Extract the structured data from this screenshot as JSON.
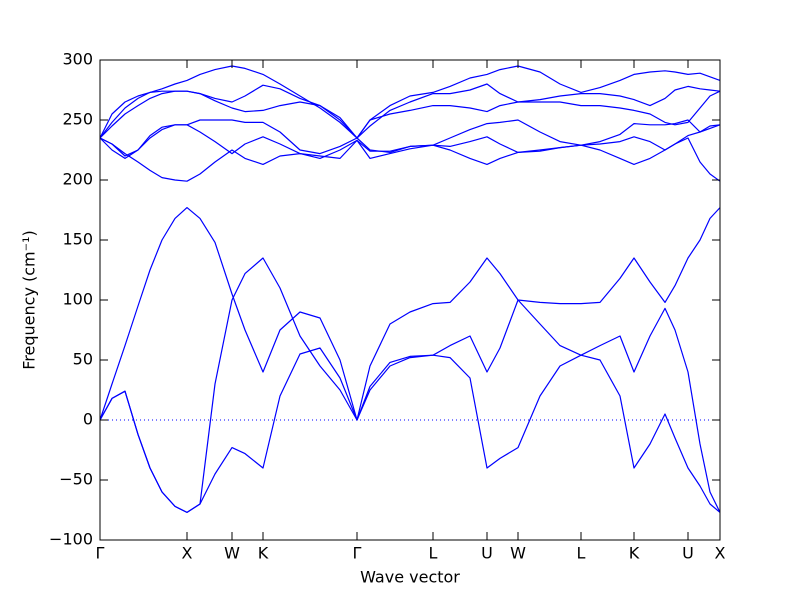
{
  "chart_data": {
    "type": "line",
    "x_label": "Wave vector",
    "y_label": "Frequency (cm⁻¹)",
    "xlim": [
      0,
      620
    ],
    "ylim": [
      -100,
      300
    ],
    "xticks": [
      {
        "value": 0,
        "label": "Γ"
      },
      {
        "value": 87,
        "label": "X"
      },
      {
        "value": 132,
        "label": "W"
      },
      {
        "value": 163,
        "label": "K"
      },
      {
        "value": 257,
        "label": "Γ"
      },
      {
        "value": 333,
        "label": "L"
      },
      {
        "value": 387,
        "label": "U"
      },
      {
        "value": 418,
        "label": "W"
      },
      {
        "value": 481,
        "label": "L"
      },
      {
        "value": 534,
        "label": "K"
      },
      {
        "value": 588,
        "label": "U"
      },
      {
        "value": 620,
        "label": "X"
      }
    ],
    "yticks": [
      {
        "value": -100,
        "label": "−100"
      },
      {
        "value": -50,
        "label": "−50"
      },
      0,
      50,
      100,
      150,
      200,
      250,
      300
    ],
    "reference_line": 0,
    "reference_color": "#0000ff",
    "x": [
      0,
      12,
      25,
      38,
      50,
      62,
      75,
      87,
      100,
      115,
      132,
      145,
      163,
      180,
      200,
      220,
      240,
      257,
      270,
      290,
      310,
      333,
      350,
      370,
      387,
      400,
      418,
      440,
      460,
      481,
      500,
      520,
      534,
      550,
      565,
      575,
      588,
      600,
      610,
      620
    ],
    "series": [
      {
        "color": "#0000ff",
        "values": [
          0,
          30,
          62,
          95,
          125,
          150,
          168,
          177,
          168,
          148,
          105,
          75,
          40,
          75,
          90,
          85,
          50,
          0,
          45,
          80,
          90,
          97,
          98,
          115,
          135,
          122,
          100,
          98,
          97,
          97,
          98,
          118,
          135,
          115,
          98,
          112,
          135,
          150,
          168,
          177
        ]
      },
      {
        "color": "#0000ff",
        "values": [
          0,
          18,
          24,
          -12,
          -40,
          -60,
          -72,
          -77,
          -70,
          30,
          100,
          122,
          135,
          110,
          70,
          45,
          25,
          0,
          25,
          45,
          52,
          54,
          62,
          70,
          40,
          60,
          100,
          80,
          62,
          54,
          62,
          70,
          40,
          70,
          93,
          75,
          40,
          -20,
          -60,
          -77
        ]
      },
      {
        "color": "#0000ff",
        "values": [
          0,
          18,
          24,
          -12,
          -40,
          -60,
          -72,
          -77,
          -70,
          -45,
          -23,
          -28,
          -40,
          20,
          55,
          60,
          35,
          0,
          28,
          48,
          53,
          54,
          52,
          35,
          -40,
          -32,
          -23,
          20,
          45,
          54,
          50,
          20,
          -40,
          -20,
          5,
          -15,
          -40,
          -55,
          -70,
          -77
        ]
      },
      {
        "color": "#0000ff",
        "values": [
          235,
          248,
          260,
          268,
          273,
          276,
          280,
          283,
          288,
          292,
          295,
          293,
          288,
          280,
          270,
          260,
          248,
          235,
          250,
          262,
          270,
          273,
          278,
          285,
          288,
          292,
          295,
          290,
          280,
          273,
          277,
          283,
          288,
          290,
          291,
          290,
          288,
          289,
          286,
          283
        ]
      },
      {
        "color": "#0000ff",
        "values": [
          235,
          255,
          265,
          270,
          273,
          274,
          274,
          274,
          272,
          268,
          265,
          270,
          279,
          276,
          268,
          262,
          250,
          235,
          245,
          258,
          265,
          272,
          272,
          275,
          280,
          272,
          265,
          267,
          270,
          272,
          272,
          270,
          267,
          262,
          268,
          275,
          278,
          276,
          275,
          274
        ]
      },
      {
        "color": "#0000ff",
        "values": [
          235,
          245,
          255,
          262,
          268,
          272,
          274,
          274,
          272,
          266,
          260,
          257,
          258,
          262,
          265,
          262,
          252,
          235,
          250,
          255,
          258,
          262,
          262,
          260,
          257,
          262,
          265,
          265,
          265,
          262,
          262,
          260,
          258,
          255,
          248,
          246,
          248,
          260,
          270,
          274
        ]
      },
      {
        "color": "#0000ff",
        "values": [
          235,
          230,
          220,
          225,
          235,
          242,
          246,
          246,
          250,
          250,
          250,
          248,
          248,
          240,
          225,
          222,
          228,
          235,
          225,
          223,
          228,
          229,
          235,
          242,
          247,
          248,
          250,
          240,
          232,
          229,
          232,
          238,
          247,
          246,
          246,
          247,
          250,
          240,
          245,
          246
        ]
      },
      {
        "color": "#0000ff",
        "values": [
          235,
          225,
          218,
          225,
          237,
          244,
          246,
          246,
          240,
          232,
          222,
          230,
          236,
          230,
          222,
          218,
          225,
          233,
          224,
          224,
          228,
          229,
          228,
          232,
          236,
          230,
          223,
          224,
          227,
          229,
          230,
          232,
          236,
          232,
          225,
          230,
          237,
          240,
          243,
          246
        ]
      },
      {
        "color": "#0000ff",
        "values": [
          235,
          230,
          222,
          215,
          208,
          202,
          200,
          199,
          205,
          215,
          225,
          218,
          213,
          220,
          222,
          220,
          218,
          233,
          218,
          222,
          226,
          229,
          225,
          218,
          213,
          218,
          223,
          225,
          227,
          229,
          225,
          218,
          213,
          218,
          225,
          230,
          235,
          215,
          205,
          199
        ]
      }
    ]
  }
}
